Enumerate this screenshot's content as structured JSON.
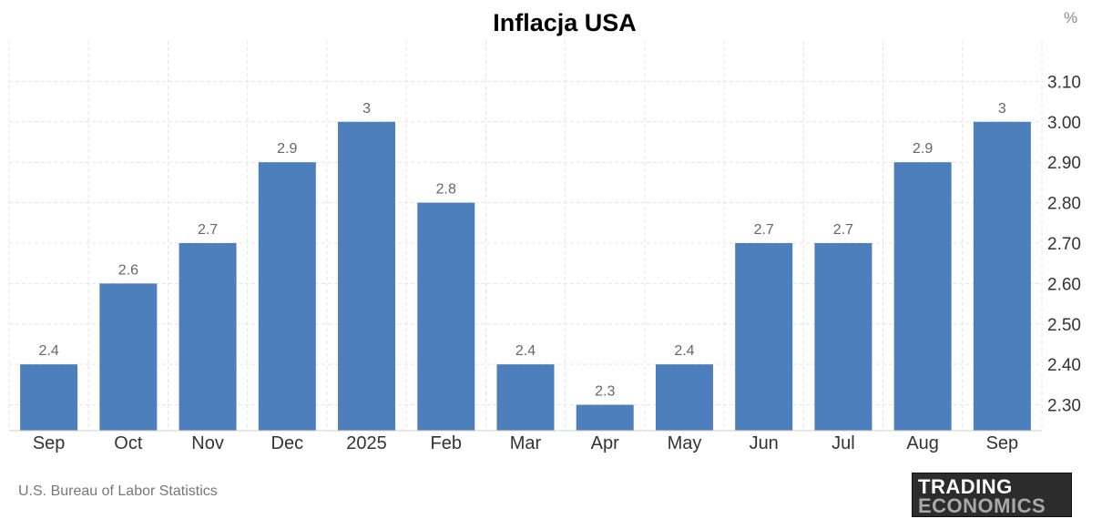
{
  "chart_data": {
    "type": "bar",
    "title": "Inflacja USA",
    "unit": "%",
    "categories": [
      "Sep",
      "Oct",
      "Nov",
      "Dec",
      "2025",
      "Feb",
      "Mar",
      "Apr",
      "May",
      "Jun",
      "Jul",
      "Aug",
      "Sep"
    ],
    "values": [
      2.4,
      2.6,
      2.7,
      2.9,
      3,
      2.8,
      2.4,
      2.3,
      2.4,
      2.7,
      2.7,
      2.9,
      3
    ],
    "data_labels": [
      "2.4",
      "2.6",
      "2.7",
      "2.9",
      "3",
      "2.8",
      "2.4",
      "2.3",
      "2.4",
      "2.7",
      "2.7",
      "2.9",
      "3"
    ],
    "yticks": [
      2.3,
      2.4,
      2.5,
      2.6,
      2.7,
      2.8,
      2.9,
      3.0,
      3.1
    ],
    "ytick_labels": [
      "2.30",
      "2.40",
      "2.50",
      "2.60",
      "2.70",
      "2.80",
      "2.90",
      "3.00",
      "3.10"
    ],
    "ylim": [
      2.236,
      3.2
    ],
    "xlabel": "",
    "ylabel": "",
    "y_axis_position": "right",
    "grid": true,
    "bar_color": "#4d7fbc",
    "grid_color": "#e4e4e4",
    "source": "U.S. Bureau of Labor Statistics"
  },
  "branding": {
    "logo_line1": "TRADING",
    "logo_line2": "ECONOMICS"
  }
}
